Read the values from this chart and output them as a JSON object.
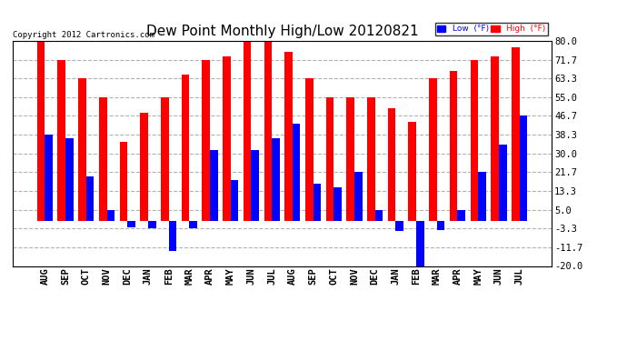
{
  "title": "Dew Point Monthly High/Low 20120821",
  "copyright": "Copyright 2012 Cartronics.com",
  "months": [
    "AUG",
    "SEP",
    "OCT",
    "NOV",
    "DEC",
    "JAN",
    "FEB",
    "MAR",
    "APR",
    "MAY",
    "JUN",
    "JUL",
    "AUG",
    "SEP",
    "OCT",
    "NOV",
    "DEC",
    "JAN",
    "FEB",
    "MAR",
    "APR",
    "MAY",
    "JUN",
    "JUL"
  ],
  "high_values": [
    80.0,
    71.7,
    63.3,
    55.0,
    35.0,
    48.0,
    55.0,
    65.0,
    71.7,
    73.0,
    80.0,
    80.0,
    75.0,
    63.3,
    55.0,
    55.0,
    55.0,
    50.0,
    44.0,
    63.3,
    66.7,
    71.7,
    73.0,
    77.0
  ],
  "low_values": [
    38.3,
    36.7,
    20.0,
    5.0,
    -3.0,
    -3.3,
    -13.3,
    -3.3,
    31.7,
    18.3,
    31.7,
    36.7,
    43.3,
    16.7,
    15.0,
    21.7,
    5.0,
    -4.5,
    -20.0,
    -4.0,
    5.0,
    21.7,
    34.0,
    46.7
  ],
  "ylim": [
    -20.0,
    80.0
  ],
  "yticks": [
    -20.0,
    -11.7,
    -3.3,
    5.0,
    13.3,
    21.7,
    30.0,
    38.3,
    46.7,
    55.0,
    63.3,
    71.7,
    80.0
  ],
  "high_color": "#FF0000",
  "low_color": "#0000FF",
  "bg_color": "#FFFFFF",
  "grid_color": "#AAAAAA",
  "bar_width": 0.38,
  "title_fontsize": 11,
  "tick_fontsize": 7.5
}
